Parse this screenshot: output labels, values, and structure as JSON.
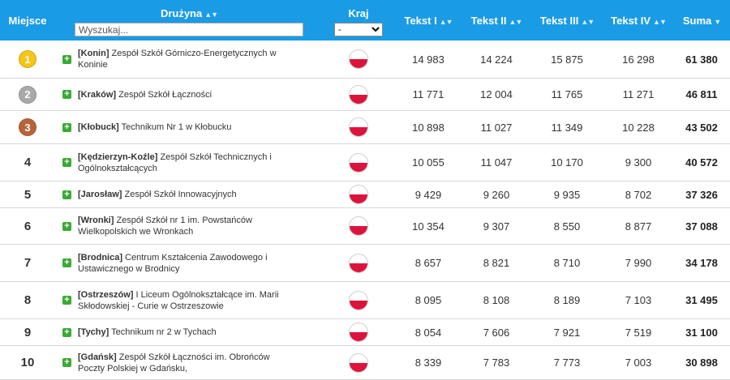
{
  "header": {
    "rank": "Miejsce",
    "team": "Drużyna",
    "country": "Kraj",
    "t1": "Tekst I",
    "t2": "Tekst II",
    "t3": "Tekst III",
    "t4": "Tekst IV",
    "sum": "Suma",
    "sort_both": "▲▼",
    "sort_desc": "▼",
    "search_placeholder": "Wyszukaj...",
    "country_selected": "-"
  },
  "colors": {
    "header_bg": "#1a9be6",
    "gold": "#f5c518",
    "silver": "#a9a9a9",
    "bronze": "#b8643a",
    "plus": "#3aa935",
    "flag_red": "#dc143c"
  },
  "rows": [
    {
      "rank": "1",
      "city": "[Konin]",
      "name": " Zespół Szkół Górniczo-Energetycznych w Koninie",
      "t1": "14 983",
      "t2": "14 224",
      "t3": "15 875",
      "t4": "16 298",
      "sum": "61 380"
    },
    {
      "rank": "2",
      "city": "[Kraków]",
      "name": " Zespół Szkół Łączności",
      "t1": "11 771",
      "t2": "12 004",
      "t3": "11 765",
      "t4": "11 271",
      "sum": "46 811"
    },
    {
      "rank": "3",
      "city": "[Kłobuck]",
      "name": " Technikum Nr 1 w Kłobucku",
      "t1": "10 898",
      "t2": "11 027",
      "t3": "11 349",
      "t4": "10 228",
      "sum": "43 502"
    },
    {
      "rank": "4",
      "city": "[Kędzierzyn-Koźle]",
      "name": " Zespół Szkół Technicznych i Ogólnokształcących",
      "t1": "10 055",
      "t2": "11 047",
      "t3": "10 170",
      "t4": "9 300",
      "sum": "40 572"
    },
    {
      "rank": "5",
      "city": "[Jarosław]",
      "name": " Zespół Szkół Innowacyjnych",
      "t1": "9 429",
      "t2": "9 260",
      "t3": "9 935",
      "t4": "8 702",
      "sum": "37 326"
    },
    {
      "rank": "6",
      "city": "[Wronki]",
      "name": " Zespół Szkół nr 1 im. Powstańców Wielkopolskich we Wronkach",
      "t1": "10 354",
      "t2": "9 307",
      "t3": "8 550",
      "t4": "8 877",
      "sum": "37 088"
    },
    {
      "rank": "7",
      "city": "[Brodnica]",
      "name": " Centrum Kształcenia Zawodowego i Ustawicznego w Brodnicy",
      "t1": "8 657",
      "t2": "8 821",
      "t3": "8 710",
      "t4": "7 990",
      "sum": "34 178"
    },
    {
      "rank": "8",
      "city": "[Ostrzeszów]",
      "name": " I Liceum Ogólnokształcące im. Marii Skłodowskiej - Curie w Ostrzeszowie",
      "t1": "8 095",
      "t2": "8 108",
      "t3": "8 189",
      "t4": "7 103",
      "sum": "31 495"
    },
    {
      "rank": "9",
      "city": "[Tychy]",
      "name": " Technikum nr 2 w Tychach",
      "t1": "8 054",
      "t2": "7 606",
      "t3": "7 921",
      "t4": "7 519",
      "sum": "31 100"
    },
    {
      "rank": "10",
      "city": "[Gdańsk]",
      "name": " Zespół Szkół Łączności im. Obrońców Poczty Polskiej w Gdańsku,",
      "t1": "8 339",
      "t2": "7 783",
      "t3": "7 773",
      "t4": "7 003",
      "sum": "30 898"
    }
  ]
}
